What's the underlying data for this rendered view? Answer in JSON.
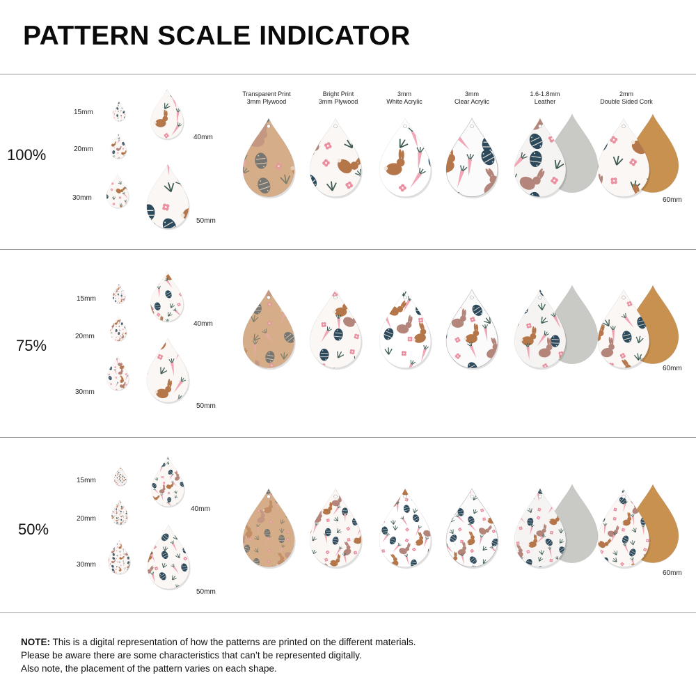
{
  "title": "PATTERN SCALE INDICATOR",
  "sizes": {
    "s15": "15mm",
    "s20": "20mm",
    "s30": "30mm",
    "s40": "40mm",
    "s50": "50mm",
    "s60": "60mm"
  },
  "materials": [
    {
      "line1": "Transparent Print",
      "line2": "3mm Plywood"
    },
    {
      "line1": "Bright Print",
      "line2": "3mm Plywood"
    },
    {
      "line1": "3mm",
      "line2": "White Acrylic"
    },
    {
      "line1": "3mm",
      "line2": "Clear Acrylic"
    },
    {
      "line1": "1.6-1.8mm",
      "line2": "Leather"
    },
    {
      "line1": "2mm",
      "line2": "Double Sided Cork"
    }
  ],
  "rows": [
    {
      "scale": "100%"
    },
    {
      "scale": "75%"
    },
    {
      "scale": "50%"
    }
  ],
  "note": {
    "label": "NOTE:",
    "line1": "This is a digital representation of how the patterns are printed on the different materials.",
    "line2": "Please be aware there are some characteristics that can’t be represented digitally.",
    "line3": "Also note, the placement of the pattern varies on each shape."
  },
  "colors": {
    "bunny": "#b5764a",
    "bunny_mauve": "#b4857a",
    "egg_navy": "#2d4a5c",
    "carrot_pink": "#f0a6b4",
    "leaf_green": "#3c5a52",
    "flower_pink": "#e98fa0",
    "plywood": "#d6ad89",
    "white_print": "#faf7f5",
    "suede_grey": "#c9cac5",
    "cork": "#c9914f"
  }
}
